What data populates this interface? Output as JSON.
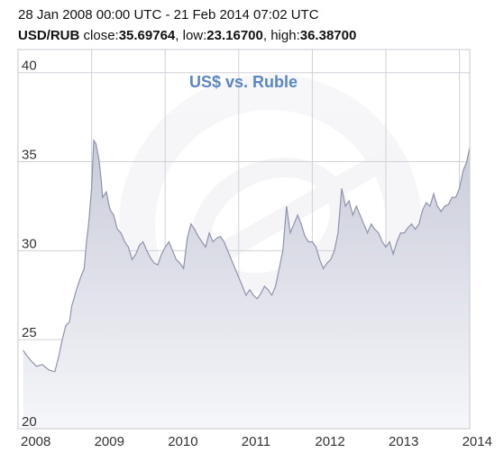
{
  "header": {
    "date_range": "28 Jan 2008 00:00 UTC - 21 Feb 2014 07:02 UTC",
    "pair": "USD/RUB",
    "close_label": "close:",
    "close_value": "35.69764",
    "low_label": ", low:",
    "low_value": "23.16700",
    "high_label": ", high:",
    "high_value": "36.38700"
  },
  "colors": {
    "title": "#5b86c4",
    "line": "#8f93ac",
    "fill_top": "#c9cbd9",
    "fill_bottom": "#f6f7fa",
    "grid": "#d0d0d8",
    "plot_border": "#c8c8d0",
    "axis_text": "#333333"
  },
  "chart_data": {
    "type": "area",
    "title": "US$ vs. Ruble",
    "xlabel": "",
    "ylabel": "",
    "ylim": [
      20,
      41.3
    ],
    "xlim": [
      2008.0,
      2014.14
    ],
    "grid": true,
    "y_ticks": [
      20,
      25,
      30,
      35,
      40
    ],
    "y_tick_labels": [
      "20",
      "25",
      "30",
      "35",
      "40"
    ],
    "x_ticks": [
      2008,
      2009,
      2010,
      2011,
      2012,
      2013,
      2014
    ],
    "x_tick_labels": [
      "2008",
      "2009",
      "2010",
      "2011",
      "2012",
      "2013",
      "2014"
    ],
    "series": [
      {
        "x": [
          2008.07,
          2008.12,
          2008.18,
          2008.25,
          2008.33,
          2008.42,
          2008.5,
          2008.55,
          2008.6,
          2008.65,
          2008.7,
          2008.73,
          2008.76,
          2008.8,
          2008.85,
          2008.9,
          2008.93,
          2008.96,
          2009.0,
          2009.03,
          2009.06,
          2009.1,
          2009.13,
          2009.15,
          2009.2,
          2009.25,
          2009.3,
          2009.35,
          2009.4,
          2009.45,
          2009.5,
          2009.55,
          2009.6,
          2009.65,
          2009.7,
          2009.75,
          2009.8,
          2009.85,
          2009.9,
          2009.95,
          2010.0,
          2010.05,
          2010.1,
          2010.15,
          2010.2,
          2010.25,
          2010.3,
          2010.35,
          2010.4,
          2010.45,
          2010.5,
          2010.55,
          2010.6,
          2010.65,
          2010.7,
          2010.75,
          2010.8,
          2010.85,
          2010.9,
          2010.95,
          2011.0,
          2011.05,
          2011.1,
          2011.15,
          2011.2,
          2011.25,
          2011.3,
          2011.35,
          2011.4,
          2011.45,
          2011.5,
          2011.55,
          2011.6,
          2011.65,
          2011.7,
          2011.75,
          2011.8,
          2011.85,
          2011.9,
          2011.95,
          2012.0,
          2012.05,
          2012.1,
          2012.15,
          2012.2,
          2012.25,
          2012.3,
          2012.35,
          2012.4,
          2012.45,
          2012.5,
          2012.55,
          2012.6,
          2012.65,
          2012.7,
          2012.75,
          2012.8,
          2012.85,
          2012.9,
          2012.95,
          2013.0,
          2013.05,
          2013.1,
          2013.15,
          2013.2,
          2013.25,
          2013.3,
          2013.35,
          2013.4,
          2013.45,
          2013.5,
          2013.55,
          2013.6,
          2013.65,
          2013.7,
          2013.75,
          2013.8,
          2013.85,
          2013.9,
          2013.95,
          2014.0,
          2014.05,
          2014.1,
          2014.14
        ],
        "values": [
          24.4,
          24.1,
          23.8,
          23.5,
          23.6,
          23.3,
          23.2,
          24.0,
          25.0,
          25.8,
          26.0,
          26.9,
          27.3,
          27.9,
          28.5,
          29.0,
          30.5,
          31.5,
          33.5,
          36.2,
          36.0,
          35.1,
          34.0,
          33.0,
          33.3,
          32.3,
          32.0,
          31.2,
          31.0,
          30.5,
          30.2,
          29.5,
          29.8,
          30.3,
          30.5,
          30.0,
          29.6,
          29.3,
          29.2,
          29.8,
          30.2,
          30.5,
          30.0,
          29.5,
          29.3,
          29.0,
          30.7,
          31.5,
          31.2,
          30.8,
          30.5,
          30.2,
          31.0,
          30.5,
          30.7,
          30.8,
          30.5,
          30.0,
          29.5,
          29.0,
          28.5,
          28.0,
          27.5,
          27.8,
          27.5,
          27.3,
          27.6,
          28.0,
          27.8,
          27.5,
          28.0,
          29.0,
          30.0,
          32.5,
          31.0,
          31.5,
          32.0,
          31.5,
          30.8,
          30.5,
          30.5,
          30.2,
          29.5,
          29.0,
          29.3,
          29.5,
          30.0,
          31.0,
          33.5,
          32.5,
          32.8,
          32.0,
          32.5,
          32.0,
          31.5,
          31.0,
          31.5,
          31.2,
          31.0,
          30.5,
          30.2,
          30.5,
          29.8,
          30.5,
          31.0,
          31.0,
          31.3,
          31.5,
          31.2,
          31.5,
          32.3,
          32.7,
          32.5,
          33.2,
          32.5,
          32.2,
          32.5,
          32.6,
          33.0,
          33.0,
          33.5,
          34.5,
          35.0,
          35.8
        ]
      }
    ]
  }
}
